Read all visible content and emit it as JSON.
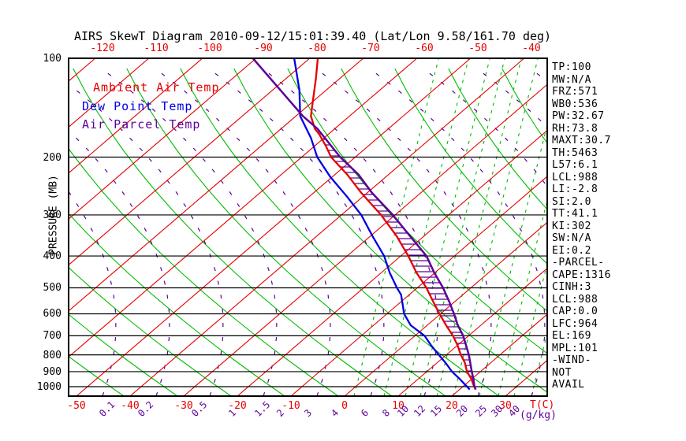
{
  "title": "AIRS SkewT Diagram 2010-09-12/15:01:39.40 (Lat/Lon 9.58/161.70 deg)",
  "legend": {
    "items": [
      {
        "label": "Ambient Air Temp",
        "color": "#e60000"
      },
      {
        "label": "Dew Point Temp",
        "color": "#0000e6"
      },
      {
        "label": "Air Parcel Temp",
        "color": "#5c0099"
      }
    ]
  },
  "axes": {
    "pressure_label": "PRESSURE (MB)",
    "temp_axis_label": "T(C)",
    "mixing_axis_label": "(g/kg)",
    "pressure_ticks": [
      100,
      200,
      300,
      400,
      500,
      600,
      700,
      800,
      900,
      1000
    ],
    "top_temp_ticks": [
      -120,
      -110,
      -100,
      -90,
      -80,
      -70,
      -60,
      -50,
      -40
    ],
    "bottom_temp_ticks": [
      -50,
      -40,
      -30,
      -20,
      -10,
      0,
      10,
      20,
      30
    ]
  },
  "stats": {
    "lines": [
      "TP:100",
      "MW:N/A",
      "FRZ:571",
      "WB0:536",
      "PW:32.67",
      "RH:73.8",
      "MAXT:30.7",
      "TH:5463",
      "L57:6.1",
      "LCL:988",
      "LI:-2.8",
      "SI:2.0",
      "TT:41.1",
      "KI:302",
      "SW:N/A",
      "EI:0.2",
      "-PARCEL-",
      "CAPE:1316",
      "CINH:3",
      "LCL:988",
      "CAP:0.0",
      "LFC:964",
      "EL:169",
      "MPL:101",
      "-WIND-",
      "NOT",
      "AVAIL"
    ]
  },
  "chart_data": {
    "type": "line",
    "variant": "skew-t-log-p",
    "title": "AIRS SkewT Diagram 2010-09-12/15:01:39.40 (Lat/Lon 9.58/161.70 deg)",
    "xlabel": "T(C)",
    "ylabel": "PRESSURE (MB)",
    "pressure_range_mb": [
      100,
      1050
    ],
    "bottom_temp_range_c": [
      -50,
      40
    ],
    "top_temp_range_c": [
      -120,
      -40
    ],
    "grid": {
      "isotherm_step_c": 10,
      "isotherm_color": "#e60000",
      "dry_adiabat_color": "#00bb00",
      "moist_adiabat_color": "#5c0099",
      "mixing_ratio_color": "#00bb00",
      "pressure_line_color": "#000000"
    },
    "mixing_ratio_ticks": [
      {
        "label": "0.1",
        "x": 133
      },
      {
        "label": "0.2",
        "x": 182
      },
      {
        "label": "0.5",
        "x": 250
      },
      {
        "label": "1",
        "x": 297
      },
      {
        "label": "1.5",
        "x": 330
      },
      {
        "label": "2",
        "x": 358
      },
      {
        "label": "3",
        "x": 393
      },
      {
        "label": "4",
        "x": 427
      },
      {
        "label": "6",
        "x": 465
      },
      {
        "label": "8",
        "x": 492
      },
      {
        "label": "10",
        "x": 511
      },
      {
        "label": "12",
        "x": 532
      },
      {
        "label": "15",
        "x": 553
      },
      {
        "label": "20",
        "x": 586
      },
      {
        "label": "25",
        "x": 610
      },
      {
        "label": "30",
        "x": 630
      },
      {
        "label": "40",
        "x": 652
      }
    ],
    "series": [
      {
        "name": "Ambient Air Temp",
        "color": "#e60000",
        "points_p_t": [
          [
            100,
            -78.5
          ],
          [
            115,
            -74.5
          ],
          [
            136,
            -69.9
          ],
          [
            150,
            -67.2
          ],
          [
            164,
            -63.7
          ],
          [
            170,
            -61.8
          ],
          [
            185,
            -57.9
          ],
          [
            200,
            -54.5
          ],
          [
            226,
            -47.7
          ],
          [
            257,
            -41.1
          ],
          [
            300,
            -32.6
          ],
          [
            348,
            -25.1
          ],
          [
            400,
            -18.6
          ],
          [
            450,
            -13.4
          ],
          [
            500,
            -8.3
          ],
          [
            550,
            -4.1
          ],
          [
            600,
            -0.2
          ],
          [
            650,
            3.5
          ],
          [
            700,
            7.1
          ],
          [
            750,
            10.1
          ],
          [
            800,
            12.7
          ],
          [
            846,
            15.2
          ],
          [
            900,
            17.5
          ],
          [
            945,
            19.8
          ],
          [
            995,
            21.9
          ],
          [
            1020,
            23.0
          ]
        ]
      },
      {
        "name": "Dew Point Temp",
        "color": "#0000e6",
        "points_p_t": [
          [
            100,
            -82.9
          ],
          [
            125,
            -75.0
          ],
          [
            150,
            -69.2
          ],
          [
            175,
            -62.4
          ],
          [
            200,
            -57.1
          ],
          [
            230,
            -50.3
          ],
          [
            264,
            -42.9
          ],
          [
            300,
            -36.3
          ],
          [
            348,
            -29.6
          ],
          [
            400,
            -23.1
          ],
          [
            450,
            -18.4
          ],
          [
            500,
            -13.8
          ],
          [
            525,
            -11.5
          ],
          [
            600,
            -6.8
          ],
          [
            650,
            -3.1
          ],
          [
            700,
            1.8
          ],
          [
            750,
            5.2
          ],
          [
            800,
            8.6
          ],
          [
            846,
            11.6
          ],
          [
            900,
            14.7
          ],
          [
            945,
            17.6
          ],
          [
            1020,
            21.9
          ]
        ]
      },
      {
        "name": "Air Parcel Temp",
        "color": "#5c0099",
        "points_p_t": [
          [
            100,
            -90.6
          ],
          [
            150,
            -68.7
          ],
          [
            164,
            -63.2
          ],
          [
            200,
            -52.8
          ],
          [
            226,
            -45.6
          ],
          [
            257,
            -39.1
          ],
          [
            300,
            -30.4
          ],
          [
            348,
            -22.6
          ],
          [
            400,
            -15.2
          ],
          [
            450,
            -10.1
          ],
          [
            500,
            -5.2
          ],
          [
            550,
            -1.1
          ],
          [
            600,
            2.5
          ],
          [
            650,
            5.7
          ],
          [
            700,
            9.0
          ],
          [
            750,
            11.7
          ],
          [
            800,
            14.2
          ],
          [
            846,
            16.2
          ],
          [
            900,
            18.4
          ],
          [
            945,
            20.2
          ],
          [
            995,
            22.0
          ],
          [
            1020,
            23.0
          ]
        ]
      }
    ],
    "cape_hatch_between": [
      "Ambient Air Temp",
      "Air Parcel Temp"
    ]
  }
}
